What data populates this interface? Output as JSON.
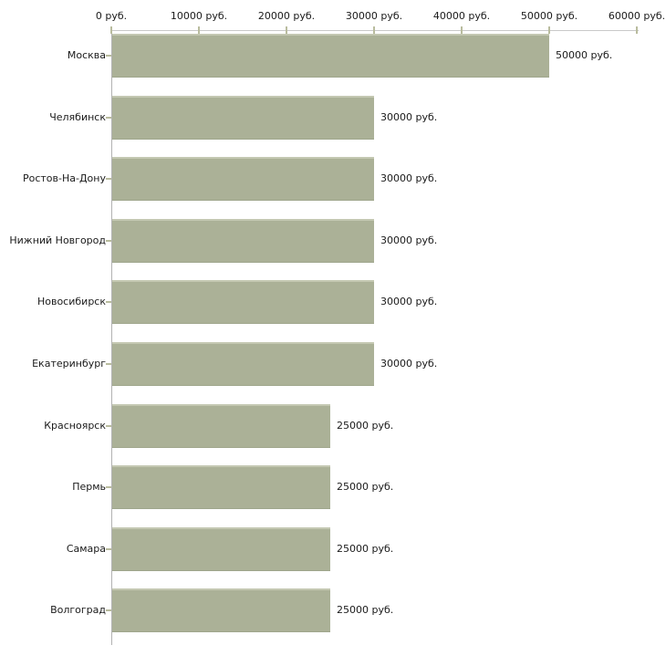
{
  "chart_data": {
    "type": "bar",
    "orientation": "horizontal",
    "unit": "руб.",
    "categories": [
      "Москва",
      "Челябинск",
      "Ростов-На-Дону",
      "Нижний Новгород",
      "Новосибирск",
      "Екатеринбург",
      "Красноярск",
      "Пермь",
      "Самара",
      "Волгоград"
    ],
    "values": [
      50000,
      30000,
      30000,
      30000,
      30000,
      30000,
      25000,
      25000,
      25000,
      25000
    ],
    "value_labels": [
      "50000 руб.",
      "30000 руб.",
      "30000 руб.",
      "30000 руб.",
      "30000 руб.",
      "30000 руб.",
      "25000 руб.",
      "25000 руб.",
      "25000 руб.",
      "25000 руб."
    ],
    "x_axis": {
      "position": "top",
      "min": 0,
      "max": 60000,
      "ticks": [
        0,
        10000,
        20000,
        30000,
        40000,
        50000,
        60000
      ],
      "tick_labels": [
        "0 руб.",
        "10000 руб.",
        "20000 руб.",
        "30000 руб.",
        "40000 руб.",
        "50000 руб.",
        "60000 руб."
      ]
    },
    "grid": false,
    "legend": false,
    "colors": {
      "bar": "#abb197",
      "bar_top_edge": "#c4c8b2",
      "bar_bottom_edge": "#9fa68c",
      "x_axis_line": "#c9c9c9",
      "y_axis_line": "#b2b2b2",
      "tick_mark": "#b9bc9e",
      "text": "#1a1a1a",
      "background": "#ffffff"
    }
  }
}
